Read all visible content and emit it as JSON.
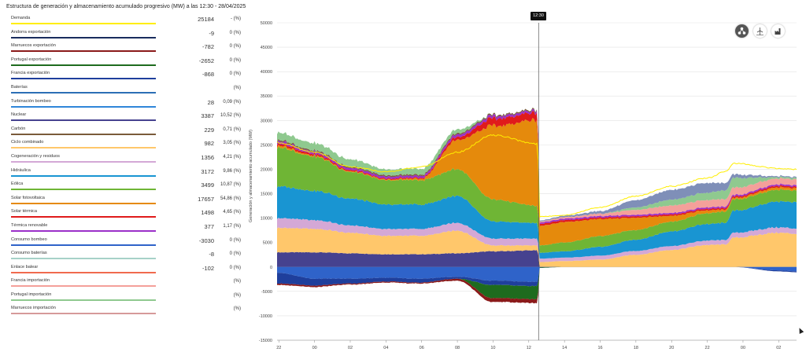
{
  "title": "Estructura de generación y almacenamiento acumulado progresivo (MW) a las 12:30 - 28/04/2025",
  "time_badge": "12:30",
  "legend": [
    {
      "name": "Demanda",
      "value": "25184",
      "pct": "- (%)",
      "color": "#ffee00"
    },
    {
      "name": "Andorra exportación",
      "value": "-9",
      "pct": "0 (%)",
      "color": "#1a2d5e"
    },
    {
      "name": "Marruecos exportación",
      "value": "-782",
      "pct": "0 (%)",
      "color": "#8b1a1a"
    },
    {
      "name": "Portugal exportación",
      "value": "-2652",
      "pct": "0 (%)",
      "color": "#1e6b1e"
    },
    {
      "name": "Francia exportación",
      "value": "-868",
      "pct": "0 (%)",
      "color": "#1f3f9c"
    },
    {
      "name": "Baterías",
      "value": "",
      "pct": "(%)",
      "color": "#2c6fb5"
    },
    {
      "name": "Turbinación bombeo",
      "value": "28",
      "pct": "0,09 (%)",
      "color": "#2f86d9"
    },
    {
      "name": "Nuclear",
      "value": "3387",
      "pct": "10,52 (%)",
      "color": "#46428f"
    },
    {
      "name": "Carbón",
      "value": "229",
      "pct": "0,71 (%)",
      "color": "#7a5a3a"
    },
    {
      "name": "Ciclo combinado",
      "value": "982",
      "pct": "3,05 (%)",
      "color": "#ffc76b"
    },
    {
      "name": "Cogeneración y residuos",
      "value": "1356",
      "pct": "4,21 (%)",
      "color": "#d4a8d6"
    },
    {
      "name": "Hidráulica",
      "value": "3172",
      "pct": "9,86 (%)",
      "color": "#1995d2"
    },
    {
      "name": "Eólica",
      "value": "3499",
      "pct": "10,87 (%)",
      "color": "#6fb535"
    },
    {
      "name": "Solar fotovoltaica",
      "value": "17657",
      "pct": "54,86 (%)",
      "color": "#e58a0c"
    },
    {
      "name": "Solar térmica",
      "value": "1498",
      "pct": "4,65 (%)",
      "color": "#e01b1b"
    },
    {
      "name": "Térmica renovable",
      "value": "377",
      "pct": "1,17 (%)",
      "color": "#9b2fc9"
    },
    {
      "name": "Consumo bombeo",
      "value": "-3030",
      "pct": "0 (%)",
      "color": "#2f63c9"
    },
    {
      "name": "Consumo baterías",
      "value": "-8",
      "pct": "0 (%)",
      "color": "#a6d1c8"
    },
    {
      "name": "Enlace balear",
      "value": "-102",
      "pct": "0 (%)",
      "color": "#f06a4e"
    },
    {
      "name": "Francia importación",
      "value": "",
      "pct": "(%)",
      "color": "#f4a09a"
    },
    {
      "name": "Portugal importación",
      "value": "",
      "pct": "(%)",
      "color": "#8fc98f"
    },
    {
      "name": "Marruecos importación",
      "value": "",
      "pct": "(%)",
      "color": "#d69a9a"
    }
  ],
  "chart_data": {
    "type": "area",
    "title": "",
    "ylabel": "Generación y almacenamiento acumulado (MW)",
    "ylim": [
      -15000,
      50000
    ],
    "yticks": [
      -15000,
      -10000,
      -5000,
      0,
      5000,
      10000,
      15000,
      20000,
      25000,
      30000,
      35000,
      40000,
      45000,
      50000
    ],
    "x_labels": [
      "22",
      "00",
      "02",
      "04",
      "06",
      "08",
      "10",
      "12",
      "14",
      "16",
      "18",
      "20",
      "22",
      "00",
      "02"
    ],
    "x_label_hours": [
      22,
      24,
      26,
      28,
      30,
      32,
      34,
      36,
      38,
      40,
      42,
      44,
      46,
      48,
      50
    ],
    "xlim_hours": [
      21.9,
      51.0
    ],
    "stacked": true,
    "grid": "horizontal",
    "anchor_hours": [
      21.9,
      24,
      26,
      28,
      30,
      32,
      34,
      36.5,
      36.6,
      38,
      40,
      42,
      44,
      46,
      47,
      47.5,
      50,
      51
    ],
    "series": [
      {
        "name": "Nuclear",
        "color": "#46428f",
        "values": [
          3000,
          3000,
          2800,
          2600,
          2600,
          2800,
          3200,
          3400,
          0,
          0,
          0,
          0,
          0,
          0,
          0,
          0,
          0,
          0
        ]
      },
      {
        "name": "Ciclo combinado",
        "color": "#ffc76b",
        "values": [
          5000,
          4800,
          4200,
          3800,
          3800,
          4600,
          1200,
          1000,
          1000,
          1200,
          1500,
          2500,
          3500,
          4500,
          4600,
          6000,
          7000,
          6800
        ]
      },
      {
        "name": "Cogeneración y residuos",
        "color": "#d4a8d6",
        "values": [
          2000,
          1800,
          1500,
          1400,
          1400,
          1600,
          1400,
          1400,
          700,
          700,
          800,
          800,
          800,
          900,
          900,
          1000,
          1100,
          1100
        ]
      },
      {
        "name": "Hidráulica",
        "color": "#1995d2",
        "values": [
          6500,
          6000,
          5500,
          5000,
          5000,
          5500,
          3500,
          3200,
          1200,
          1300,
          1800,
          2300,
          3000,
          3400,
          3500,
          4500,
          5300,
          5400
        ]
      },
      {
        "name": "Eólica",
        "color": "#6fb535",
        "values": [
          8000,
          7000,
          5500,
          5000,
          5000,
          5500,
          4500,
          3500,
          1500,
          1800,
          2200,
          2000,
          2000,
          2200,
          2300,
          2300,
          2400,
          2400
        ]
      },
      {
        "name": "Solar fotovoltaica",
        "color": "#e58a0c",
        "values": [
          400,
          200,
          150,
          150,
          300,
          6000,
          15000,
          17600,
          4000,
          4200,
          3500,
          2500,
          1200,
          600,
          400,
          300,
          500,
          500
        ]
      },
      {
        "name": "Solar térmica",
        "color": "#e01b1b",
        "values": [
          400,
          350,
          250,
          200,
          200,
          600,
          1500,
          1500,
          400,
          400,
          300,
          300,
          300,
          300,
          300,
          300,
          300,
          300
        ]
      },
      {
        "name": "Térmica renovable",
        "color": "#9b2fc9",
        "values": [
          500,
          450,
          400,
          400,
          400,
          500,
          500,
          400,
          300,
          300,
          300,
          300,
          300,
          300,
          300,
          300,
          300,
          300
        ]
      },
      {
        "name": "Carbón",
        "color": "#7a5a3a",
        "values": [
          250,
          250,
          250,
          250,
          250,
          250,
          250,
          230,
          0,
          0,
          0,
          0,
          0,
          0,
          0,
          0,
          0,
          0
        ]
      },
      {
        "name": "Francia importación",
        "color": "#f4a09a",
        "values": [
          0,
          0,
          0,
          0,
          0,
          0,
          0,
          0,
          200,
          300,
          500,
          1000,
          1500,
          1500,
          1500,
          1500,
          1200,
          1200
        ]
      },
      {
        "name": "Portugal importación",
        "color": "#8fc98f",
        "values": [
          1500,
          1500,
          1500,
          1200,
          1200,
          800,
          0,
          0,
          0,
          0,
          0,
          500,
          1200,
          1500,
          1800,
          2000,
          300,
          300
        ]
      },
      {
        "name": "Marruecos importación",
        "color": "#7f8fb8",
        "values": [
          0,
          0,
          0,
          0,
          0,
          0,
          0,
          0,
          200,
          300,
          500,
          1500,
          2000,
          2000,
          1500,
          700,
          200,
          200
        ]
      }
    ],
    "negative_series": [
      {
        "name": "Consumo bombeo",
        "color": "#2f63c9",
        "values": [
          -1200,
          -2400,
          -2400,
          -2200,
          -2400,
          -2000,
          -2800,
          -3030,
          0,
          0,
          0,
          0,
          0,
          0,
          0,
          0,
          -700,
          -900
        ]
      },
      {
        "name": "Francia exportación",
        "color": "#1f3f9c",
        "values": [
          -2200,
          -1400,
          -1000,
          -800,
          -800,
          -400,
          -900,
          -868,
          -100,
          0,
          0,
          0,
          0,
          0,
          0,
          0,
          -200,
          -200
        ]
      },
      {
        "name": "Portugal exportación",
        "color": "#1e6b1e",
        "values": [
          0,
          0,
          0,
          0,
          0,
          0,
          -2700,
          -2652,
          -100,
          0,
          0,
          0,
          0,
          0,
          0,
          0,
          0,
          0
        ]
      },
      {
        "name": "Marruecos exportación",
        "color": "#8b1a1a",
        "values": [
          -300,
          -300,
          -200,
          -200,
          -200,
          -400,
          -800,
          -782,
          0,
          0,
          0,
          0,
          0,
          0,
          0,
          0,
          0,
          0
        ]
      }
    ],
    "demand": {
      "name": "Demanda",
      "color": "#ffee00",
      "values": [
        25500,
        23500,
        20500,
        19500,
        20500,
        23500,
        27000,
        25200,
        10300,
        10600,
        12200,
        14500,
        16500,
        18200,
        19500,
        21200,
        20200,
        20000
      ]
    }
  }
}
